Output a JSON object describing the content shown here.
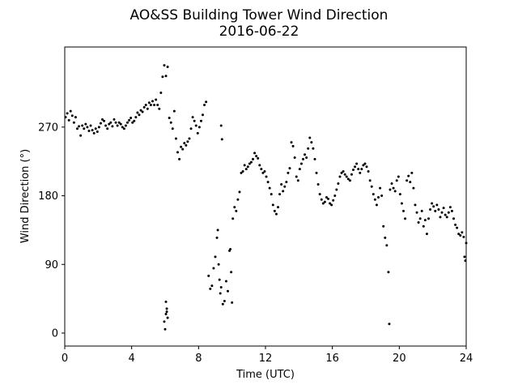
{
  "chart_data": {
    "type": "scatter",
    "title": "AO&SS Building Tower Wind Direction",
    "subtitle": "2016-06-22",
    "xlabel": "Time (UTC)",
    "ylabel": "Wind Direction (°)",
    "xlim": [
      0,
      24
    ],
    "ylim": [
      -17,
      375
    ],
    "xticks": [
      0,
      4,
      8,
      12,
      16,
      20,
      24
    ],
    "yticks": [
      0,
      90,
      180,
      270
    ],
    "grid": false,
    "marker_color": "#000000",
    "series": [
      {
        "points": [
          [
            0.05,
            283
          ],
          [
            0.15,
            288
          ],
          [
            0.25,
            279
          ],
          [
            0.35,
            291
          ],
          [
            0.45,
            285
          ],
          [
            0.55,
            276
          ],
          [
            0.65,
            283
          ],
          [
            0.75,
            268
          ],
          [
            0.85,
            271
          ],
          [
            0.95,
            259
          ],
          [
            1.05,
            272
          ],
          [
            1.15,
            268
          ],
          [
            1.25,
            274
          ],
          [
            1.35,
            270
          ],
          [
            1.45,
            265
          ],
          [
            1.55,
            272
          ],
          [
            1.65,
            266
          ],
          [
            1.75,
            262
          ],
          [
            1.85,
            268
          ],
          [
            1.95,
            264
          ],
          [
            2.05,
            270
          ],
          [
            2.15,
            275
          ],
          [
            2.25,
            280
          ],
          [
            2.35,
            278
          ],
          [
            2.45,
            272
          ],
          [
            2.55,
            268
          ],
          [
            2.65,
            274
          ],
          [
            2.75,
            276
          ],
          [
            2.85,
            271
          ],
          [
            2.95,
            280
          ],
          [
            3.05,
            276
          ],
          [
            3.15,
            272
          ],
          [
            3.25,
            276
          ],
          [
            3.35,
            274
          ],
          [
            3.45,
            270
          ],
          [
            3.55,
            268
          ],
          [
            3.65,
            272
          ],
          [
            3.75,
            276
          ],
          [
            3.85,
            279
          ],
          [
            3.95,
            282
          ],
          [
            4.05,
            276
          ],
          [
            4.15,
            278
          ],
          [
            4.25,
            283
          ],
          [
            4.35,
            289
          ],
          [
            4.45,
            286
          ],
          [
            4.55,
            292
          ],
          [
            4.65,
            290
          ],
          [
            4.75,
            296
          ],
          [
            4.85,
            299
          ],
          [
            4.95,
            294
          ],
          [
            5.05,
            302
          ],
          [
            5.15,
            299
          ],
          [
            5.25,
            304
          ],
          [
            5.35,
            299
          ],
          [
            5.45,
            306
          ],
          [
            5.55,
            299
          ],
          [
            5.65,
            294
          ],
          [
            5.75,
            315
          ],
          [
            5.85,
            336
          ],
          [
            5.95,
            351
          ],
          [
            6.05,
            337
          ],
          [
            6.15,
            349
          ],
          [
            6.25,
            282
          ],
          [
            6.35,
            276
          ],
          [
            6.45,
            268
          ],
          [
            6.55,
            291
          ],
          [
            6.65,
            255
          ],
          [
            6.75,
            237
          ],
          [
            6.85,
            228
          ],
          [
            6.95,
            244
          ],
          [
            7.05,
            241
          ],
          [
            7.15,
            249
          ],
          [
            7.25,
            246
          ],
          [
            7.35,
            251
          ],
          [
            7.45,
            255
          ],
          [
            7.55,
            268
          ],
          [
            7.65,
            283
          ],
          [
            7.75,
            278
          ],
          [
            7.85,
            272
          ],
          [
            7.95,
            262
          ],
          [
            8.05,
            270
          ],
          [
            8.15,
            278
          ],
          [
            8.25,
            286
          ],
          [
            8.35,
            299
          ],
          [
            8.45,
            303
          ],
          [
            5.95,
            15
          ],
          [
            6.0,
            5
          ],
          [
            6.05,
            25
          ],
          [
            6.1,
            32
          ],
          [
            6.15,
            20
          ],
          [
            6.05,
            41
          ],
          [
            6.1,
            28
          ],
          [
            9.35,
            272
          ],
          [
            9.4,
            254
          ],
          [
            8.6,
            75
          ],
          [
            8.7,
            58
          ],
          [
            8.8,
            62
          ],
          [
            8.9,
            85
          ],
          [
            9.0,
            100
          ],
          [
            9.1,
            125
          ],
          [
            9.15,
            135
          ],
          [
            9.2,
            90
          ],
          [
            9.25,
            70
          ],
          [
            9.3,
            52
          ],
          [
            9.35,
            60
          ],
          [
            9.45,
            38
          ],
          [
            9.55,
            42
          ],
          [
            9.65,
            68
          ],
          [
            9.75,
            55
          ],
          [
            9.85,
            108
          ],
          [
            9.9,
            110
          ],
          [
            9.95,
            80
          ],
          [
            10.0,
            40
          ],
          [
            10.05,
            150
          ],
          [
            10.15,
            165
          ],
          [
            10.25,
            160
          ],
          [
            10.35,
            175
          ],
          [
            10.45,
            185
          ],
          [
            10.55,
            210
          ],
          [
            10.65,
            212
          ],
          [
            10.75,
            220
          ],
          [
            10.85,
            215
          ],
          [
            10.95,
            218
          ],
          [
            11.05,
            222
          ],
          [
            11.15,
            224
          ],
          [
            11.25,
            228
          ],
          [
            11.35,
            236
          ],
          [
            11.45,
            232
          ],
          [
            11.55,
            229
          ],
          [
            11.65,
            220
          ],
          [
            11.75,
            215
          ],
          [
            11.85,
            210
          ],
          [
            11.95,
            212
          ],
          [
            12.05,
            205
          ],
          [
            12.15,
            198
          ],
          [
            12.25,
            190
          ],
          [
            12.35,
            182
          ],
          [
            12.45,
            168
          ],
          [
            12.55,
            160
          ],
          [
            12.65,
            156
          ],
          [
            12.75,
            165
          ],
          [
            12.85,
            182
          ],
          [
            12.95,
            195
          ],
          [
            13.05,
            186
          ],
          [
            13.15,
            192
          ],
          [
            13.25,
            198
          ],
          [
            13.35,
            210
          ],
          [
            13.45,
            216
          ],
          [
            13.55,
            250
          ],
          [
            13.65,
            245
          ],
          [
            13.75,
            230
          ],
          [
            13.85,
            205
          ],
          [
            13.95,
            200
          ],
          [
            14.05,
            215
          ],
          [
            14.15,
            222
          ],
          [
            14.25,
            228
          ],
          [
            14.35,
            234
          ],
          [
            14.45,
            230
          ],
          [
            14.55,
            242
          ],
          [
            14.65,
            256
          ],
          [
            14.75,
            250
          ],
          [
            14.85,
            242
          ],
          [
            14.95,
            228
          ],
          [
            15.05,
            210
          ],
          [
            15.15,
            195
          ],
          [
            15.25,
            182
          ],
          [
            15.35,
            175
          ],
          [
            15.45,
            170
          ],
          [
            15.55,
            172
          ],
          [
            15.65,
            178
          ],
          [
            15.75,
            176
          ],
          [
            15.85,
            170
          ],
          [
            15.95,
            168
          ],
          [
            16.05,
            174
          ],
          [
            16.15,
            180
          ],
          [
            16.25,
            188
          ],
          [
            16.35,
            196
          ],
          [
            16.45,
            205
          ],
          [
            16.55,
            210
          ],
          [
            16.65,
            212
          ],
          [
            16.75,
            208
          ],
          [
            16.85,
            205
          ],
          [
            16.95,
            202
          ],
          [
            17.05,
            200
          ],
          [
            17.15,
            208
          ],
          [
            17.25,
            214
          ],
          [
            17.35,
            218
          ],
          [
            17.45,
            222
          ],
          [
            17.55,
            215
          ],
          [
            17.65,
            210
          ],
          [
            17.75,
            215
          ],
          [
            17.85,
            220
          ],
          [
            17.95,
            222
          ],
          [
            18.05,
            218
          ],
          [
            18.15,
            212
          ],
          [
            18.25,
            200
          ],
          [
            18.35,
            192
          ],
          [
            18.45,
            182
          ],
          [
            18.55,
            175
          ],
          [
            18.65,
            168
          ],
          [
            18.75,
            178
          ],
          [
            18.85,
            190
          ],
          [
            18.95,
            180
          ],
          [
            19.05,
            140
          ],
          [
            19.15,
            125
          ],
          [
            19.25,
            115
          ],
          [
            19.35,
            80
          ],
          [
            19.4,
            12
          ],
          [
            19.45,
            188
          ],
          [
            19.55,
            196
          ],
          [
            19.65,
            190
          ],
          [
            19.75,
            186
          ],
          [
            19.85,
            200
          ],
          [
            19.95,
            205
          ],
          [
            20.05,
            182
          ],
          [
            20.15,
            170
          ],
          [
            20.25,
            160
          ],
          [
            20.35,
            150
          ],
          [
            20.45,
            200
          ],
          [
            20.55,
            206
          ],
          [
            20.65,
            198
          ],
          [
            20.75,
            210
          ],
          [
            20.85,
            190
          ],
          [
            20.95,
            168
          ],
          [
            21.05,
            158
          ],
          [
            21.15,
            145
          ],
          [
            21.25,
            150
          ],
          [
            21.35,
            160
          ],
          [
            21.45,
            140
          ],
          [
            21.55,
            148
          ],
          [
            21.65,
            130
          ],
          [
            21.75,
            150
          ],
          [
            21.85,
            162
          ],
          [
            21.95,
            170
          ],
          [
            22.05,
            166
          ],
          [
            22.15,
            160
          ],
          [
            22.25,
            168
          ],
          [
            22.35,
            162
          ],
          [
            22.45,
            152
          ],
          [
            22.55,
            158
          ],
          [
            22.65,
            164
          ],
          [
            22.75,
            155
          ],
          [
            22.85,
            152
          ],
          [
            22.95,
            158
          ],
          [
            23.05,
            165
          ],
          [
            23.15,
            160
          ],
          [
            23.25,
            150
          ],
          [
            23.35,
            142
          ],
          [
            23.45,
            138
          ],
          [
            23.55,
            130
          ],
          [
            23.65,
            128
          ],
          [
            23.75,
            132
          ],
          [
            23.85,
            126
          ],
          [
            23.9,
            100
          ],
          [
            23.95,
            95
          ],
          [
            24.0,
            118
          ]
        ]
      }
    ]
  }
}
